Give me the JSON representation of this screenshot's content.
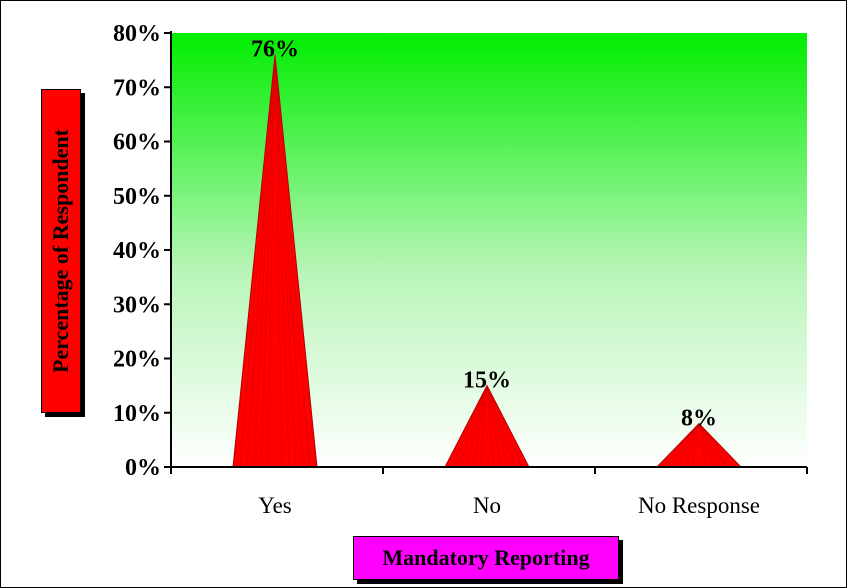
{
  "chart_data": {
    "type": "bar",
    "bar_shape": "cone",
    "categories": [
      "Yes",
      "No",
      "No Response"
    ],
    "values": [
      76,
      15,
      8
    ],
    "data_labels": [
      "76%",
      "15%",
      "8%"
    ],
    "ylabel": "Percentage of Respondent",
    "xlabel": "Mandatory Reporting",
    "ylim": [
      0,
      80
    ],
    "y_ticks": [
      "0%",
      "10%",
      "20%",
      "30%",
      "40%",
      "50%",
      "60%",
      "70%",
      "80%"
    ],
    "y_tick_values": [
      0,
      10,
      20,
      30,
      40,
      50,
      60,
      70,
      80
    ],
    "grid": false,
    "legend": "none",
    "colors": {
      "bar": "#ff0000",
      "bar_edge": "#b00000",
      "plot_bg_top": "#00ee00",
      "plot_bg_bottom": "#ffffff",
      "ylabel_bg": "#ff0000",
      "xlabel_bg": "#ff00ff"
    }
  }
}
